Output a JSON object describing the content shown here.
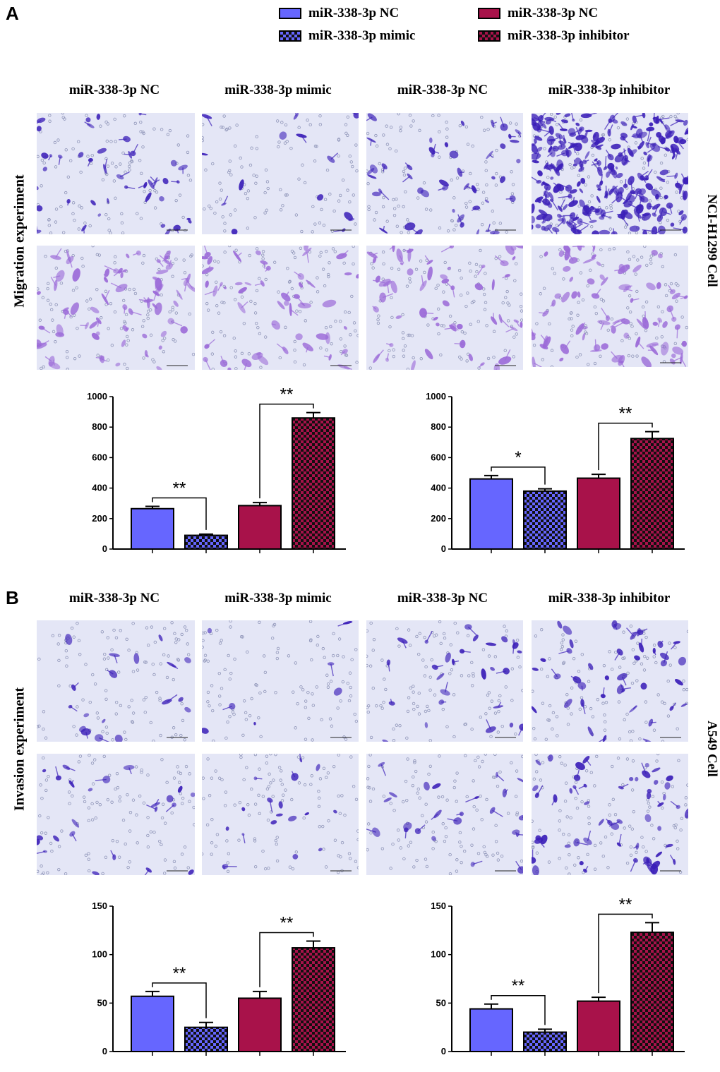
{
  "panels": [
    {
      "letter": "A",
      "experiment_label": "Migration experiment",
      "cell_label": "NCI-H1299 Cell"
    },
    {
      "letter": "B",
      "experiment_label": "Invasion experiment",
      "cell_label": "A549 Cell"
    }
  ],
  "legend": [
    {
      "label": "miR-338-3p NC",
      "fill": "#6666ff",
      "pattern": "solid"
    },
    {
      "label": "miR-338-3p mimic",
      "fill": "#6666ff",
      "pattern": "checker"
    },
    {
      "label": "miR-338-3p NC",
      "fill": "#a8124a",
      "pattern": "solid"
    },
    {
      "label": "miR-338-3p inhibitor",
      "fill": "#a8124a",
      "pattern": "checker"
    }
  ],
  "column_labels": [
    "miR-338-3p NC",
    "miR-338-3p mimic",
    "miR-338-3p NC",
    "miR-338-3p inhibitor"
  ],
  "micrograph_density": {
    "A": [
      [
        0.45,
        0.15,
        0.5,
        1.0
      ],
      [
        0.75,
        0.55,
        0.6,
        0.85
      ]
    ],
    "B": [
      [
        0.2,
        0.08,
        0.3,
        0.45
      ],
      [
        0.25,
        0.2,
        0.25,
        0.6
      ]
    ]
  },
  "colors": {
    "nc_blue": "#6666ff",
    "nc_crimson": "#a8124a",
    "stain_dark": "#3b1fb8",
    "stain_light": "#9b6ad8",
    "field": "#e4e6f6"
  },
  "chart_data": [
    {
      "panel": "A",
      "type": "bar",
      "categories": [
        "miR-338-3p NC",
        "miR-338-3p mimic",
        "miR-338-3p NC",
        "miR-338-3p inhibitor"
      ],
      "values": [
        265,
        90,
        285,
        860
      ],
      "errors": [
        15,
        8,
        20,
        35
      ],
      "ylim": [
        0,
        1000
      ],
      "yticks": [
        "0",
        "200",
        "400",
        "600",
        "800",
        "1000"
      ],
      "significance": [
        {
          "between": [
            0,
            1
          ],
          "label": "**"
        },
        {
          "between": [
            2,
            3
          ],
          "label": "**"
        }
      ]
    },
    {
      "panel": "A",
      "type": "bar",
      "categories": [
        "miR-338-3p NC",
        "miR-338-3p mimic",
        "miR-338-3p NC",
        "miR-338-3p inhibitor"
      ],
      "values": [
        460,
        380,
        465,
        725
      ],
      "errors": [
        22,
        15,
        25,
        45
      ],
      "ylim": [
        0,
        1000
      ],
      "yticks": [
        "0",
        "200",
        "400",
        "600",
        "800",
        "1000"
      ],
      "significance": [
        {
          "between": [
            0,
            1
          ],
          "label": "*"
        },
        {
          "between": [
            2,
            3
          ],
          "label": "**"
        }
      ]
    },
    {
      "panel": "B",
      "type": "bar",
      "categories": [
        "miR-338-3p NC",
        "miR-338-3p mimic",
        "miR-338-3p NC",
        "miR-338-3p inhibitor"
      ],
      "values": [
        57,
        25,
        55,
        107
      ],
      "errors": [
        5,
        5,
        7,
        7
      ],
      "ylim": [
        0,
        150
      ],
      "yticks": [
        "0",
        "50",
        "100",
        "150"
      ],
      "significance": [
        {
          "between": [
            0,
            1
          ],
          "label": "**"
        },
        {
          "between": [
            2,
            3
          ],
          "label": "**"
        }
      ]
    },
    {
      "panel": "B",
      "type": "bar",
      "categories": [
        "miR-338-3p NC",
        "miR-338-3p mimic",
        "miR-338-3p NC",
        "miR-338-3p inhibitor"
      ],
      "values": [
        44,
        20,
        52,
        123
      ],
      "errors": [
        5,
        3,
        4,
        10
      ],
      "ylim": [
        0,
        150
      ],
      "yticks": [
        "0",
        "50",
        "100",
        "150"
      ],
      "significance": [
        {
          "between": [
            0,
            1
          ],
          "label": "**"
        },
        {
          "between": [
            2,
            3
          ],
          "label": "**"
        }
      ]
    }
  ]
}
